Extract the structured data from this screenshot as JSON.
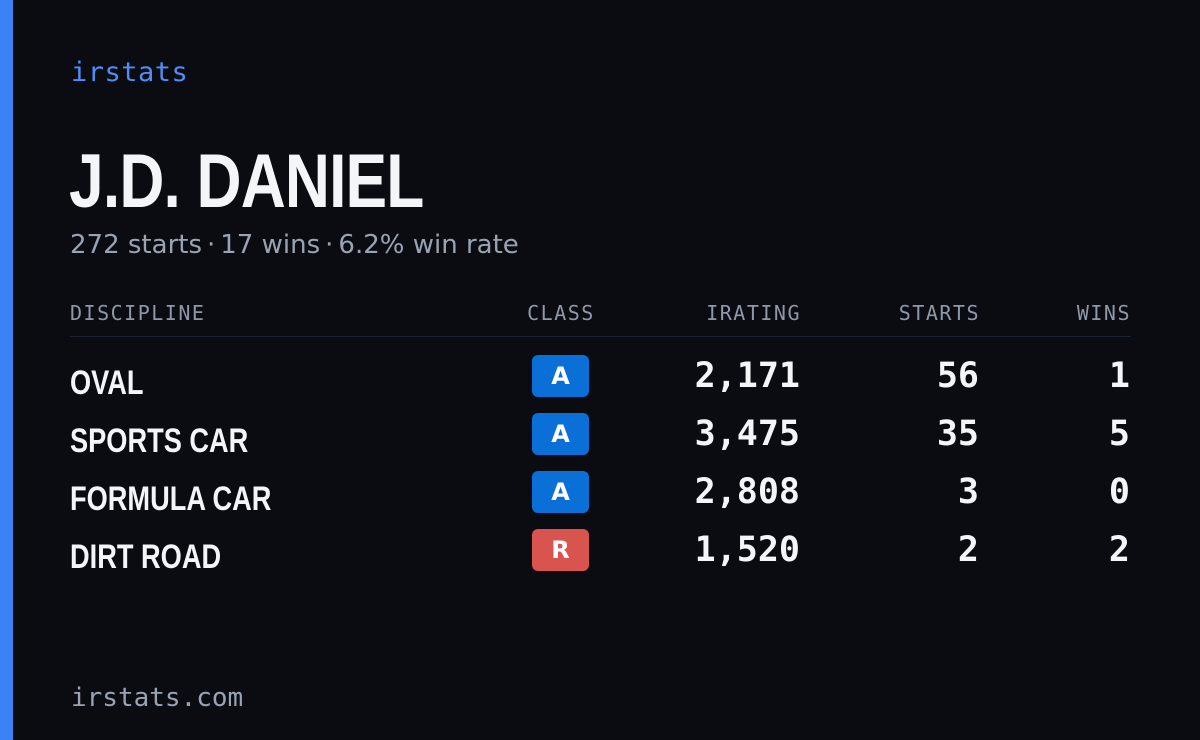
{
  "brand": "irstats",
  "driver": {
    "name": "J.D. DANIEL"
  },
  "summary": {
    "starts": "272 starts",
    "wins": "17 wins",
    "win_rate": "6.2% win rate",
    "separator": "·"
  },
  "table": {
    "headers": {
      "discipline": "DISCIPLINE",
      "class": "CLASS",
      "irating": "IRATING",
      "starts": "STARTS",
      "wins": "WINS"
    },
    "rows": [
      {
        "discipline": "OVAL",
        "class": "A",
        "class_color": "#0a6fd6",
        "irating": "2,171",
        "starts": "56",
        "wins": "1"
      },
      {
        "discipline": "SPORTS CAR",
        "class": "A",
        "class_color": "#0a6fd6",
        "irating": "3,475",
        "starts": "35",
        "wins": "5"
      },
      {
        "discipline": "FORMULA CAR",
        "class": "A",
        "class_color": "#0a6fd6",
        "irating": "2,808",
        "starts": "3",
        "wins": "0"
      },
      {
        "discipline": "DIRT ROAD",
        "class": "R",
        "class_color": "#d9534f",
        "irating": "1,520",
        "starts": "2",
        "wins": "2"
      }
    ]
  },
  "footer": {
    "site": "irstats.com"
  },
  "colors": {
    "background": "#0a0c12",
    "accent": "#3a82f6",
    "brand": "#4f8ef7",
    "text_primary": "#f4f5f8",
    "text_muted": "#9aa3b2"
  }
}
